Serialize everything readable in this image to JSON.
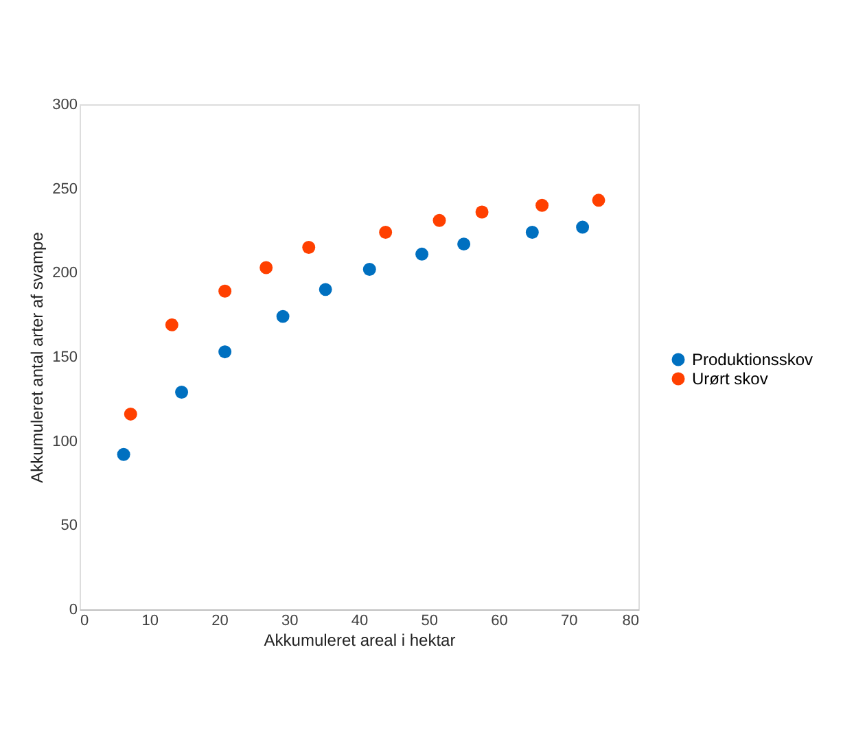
{
  "chart_data": {
    "type": "scatter",
    "xlabel": "Akkumuleret areal i hektar",
    "ylabel": "Akkumuleret antal arter af svampe",
    "xlim": [
      0,
      80
    ],
    "xticks": [
      0,
      10,
      20,
      30,
      40,
      50,
      60,
      70,
      80
    ],
    "ylim": [
      0,
      300
    ],
    "yticks": [
      0,
      50,
      100,
      150,
      200,
      250,
      300
    ],
    "grid": false,
    "legend": "right",
    "marker": "circle",
    "series": [
      {
        "name": "Produktionsskov",
        "color": "#0070c0",
        "x": [
          6.3,
          14.6,
          20.8,
          29.1,
          35.2,
          41.5,
          49,
          55,
          64.8,
          72
        ],
        "values": [
          92,
          129,
          153,
          174,
          190,
          202,
          211,
          217,
          224,
          227
        ]
      },
      {
        "name": "Urørt skov",
        "color": "#ff4000",
        "x": [
          7.3,
          13.2,
          20.8,
          26.7,
          32.8,
          43.8,
          51.5,
          57.6,
          66.2,
          74.3
        ],
        "values": [
          116,
          169,
          189,
          203,
          215,
          224,
          231,
          236,
          240,
          243
        ]
      }
    ]
  }
}
